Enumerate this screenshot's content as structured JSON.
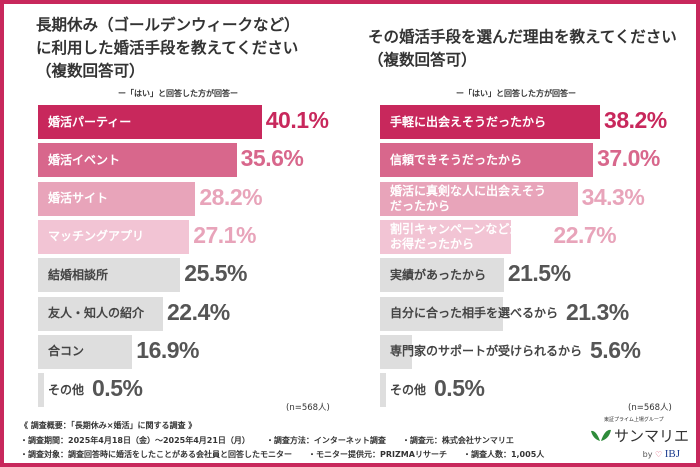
{
  "colors": {
    "frame": "#c8285c",
    "c1": "#c8285c",
    "c2": "#d8678c",
    "c3": "#e8a4ba",
    "c4": "#f2c4d4",
    "gray": "#dedede",
    "grayText": "#555555"
  },
  "left": {
    "title": [
      "長期休み（ゴールデンウィークなど）",
      "に利用した婚活手段を教えてください",
      "（複数回答可）"
    ],
    "subtitle": "ー「はい」と回答した方が回答ー",
    "n": "(n=568人)",
    "chart_data": {
      "type": "bar",
      "orientation": "horizontal",
      "unit": "%",
      "categories": [
        "婚活パーティー",
        "婚活イベント",
        "婚活サイト",
        "マッチングアプリ",
        "結婚相談所",
        "友人・知人の紹介",
        "合コン",
        "その他"
      ],
      "values": [
        40.1,
        35.6,
        28.2,
        27.1,
        25.5,
        22.4,
        16.9,
        0.5
      ],
      "labels": [
        "40.1%",
        "35.6%",
        "28.2%",
        "27.1%",
        "25.5%",
        "22.4%",
        "16.9%",
        "0.5%"
      ]
    }
  },
  "right": {
    "title": [
      "その婚活手段を選んだ理由を教えてください",
      "（複数回答可）"
    ],
    "subtitle": "ー「はい」と回答した方が回答ー",
    "n": "(n=568人)",
    "chart_data": {
      "type": "bar",
      "orientation": "horizontal",
      "unit": "%",
      "categories": [
        "手軽に出会えそうだったから",
        "信頼できそうだったから",
        "婚活に真剣な人に出会えそうだったから",
        "割引キャンペーンなどがありお得だったから",
        "実績があったから",
        "自分に合った相手を選べるから",
        "専門家のサポートが受けられるから",
        "その他"
      ],
      "values": [
        38.2,
        37.0,
        34.3,
        22.7,
        21.5,
        21.3,
        5.6,
        0.5
      ],
      "labels": [
        "38.2%",
        "37.0%",
        "34.3%",
        "22.7%",
        "21.5%",
        "21.3%",
        "5.6%",
        "0.5%"
      ]
    }
  },
  "footer": {
    "overview": "《 調査概要：「長期休み×婚活」に関する調査 》",
    "period": "・調査期間：2025年4月18日（金）〜2025年4月21日（月）",
    "method": "・調査方法：インターネット調査",
    "source": "・調査元：株式会社サンマリエ",
    "target": "・調査対象：調査回答時に婚活をしたことがある会社員と回答したモニター",
    "provider": "・モニター提供元：PRIZMAリサーチ",
    "count": "・調査人数：1,005人"
  },
  "logo": {
    "tagline": "東証プライム上場グループ",
    "name": "サンマリエ",
    "by": "by",
    "ibj": "IBJ"
  }
}
